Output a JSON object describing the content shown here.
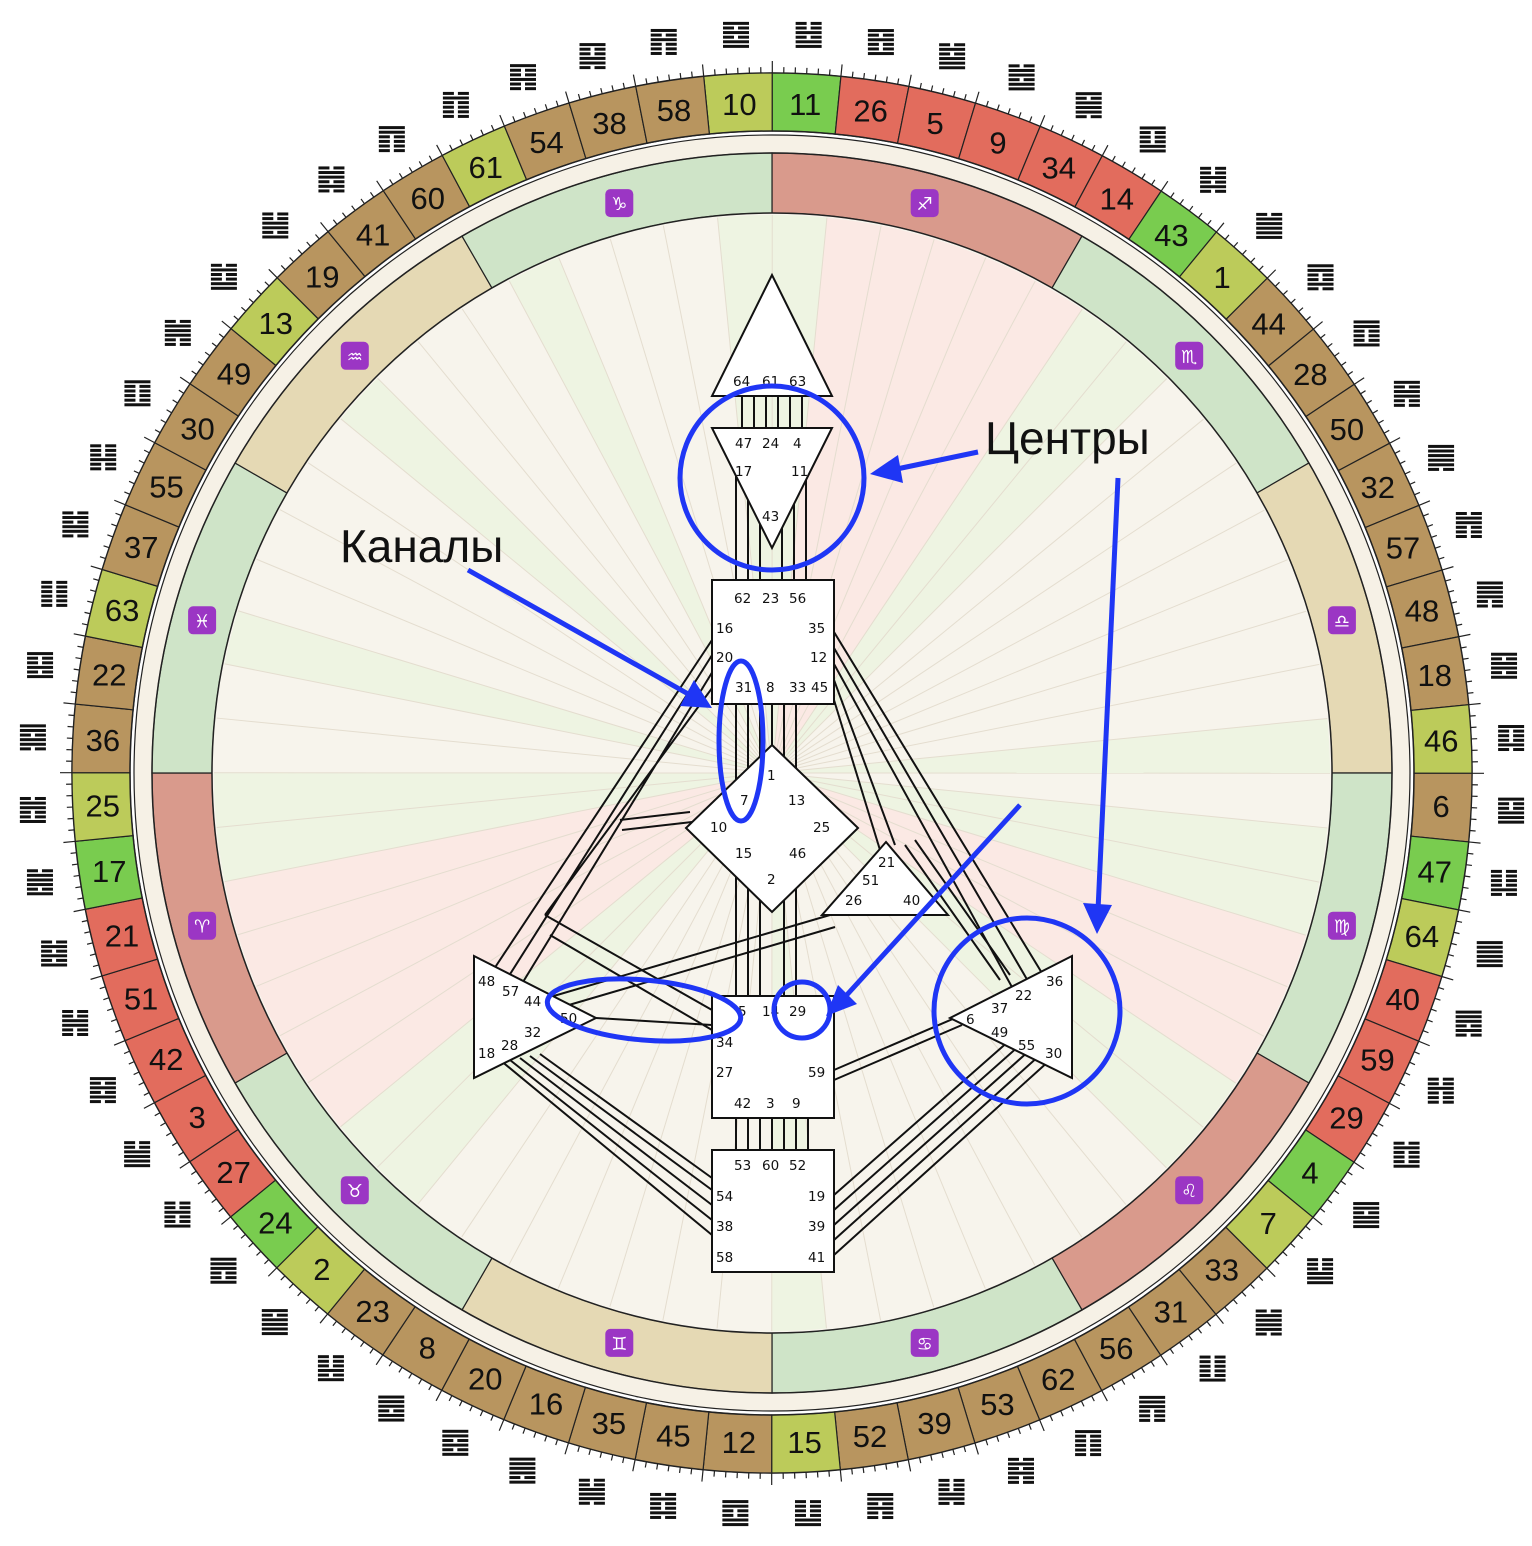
{
  "chart": {
    "colors": {
      "brown": "#b8955f",
      "green": "#79cc4f",
      "lime": "#bccb5a",
      "red": "#e26c5d",
      "ring_green": "#cfe4c8",
      "ring_red": "#d99a8c",
      "ring_tan": "#e5d9b4",
      "channel": "#111111",
      "annotation_blue": "#1f36f5"
    },
    "gates": [
      {
        "n": "10",
        "c": "lime"
      },
      {
        "n": "11",
        "c": "green"
      },
      {
        "n": "26",
        "c": "red"
      },
      {
        "n": "5",
        "c": "red"
      },
      {
        "n": "9",
        "c": "red"
      },
      {
        "n": "34",
        "c": "red"
      },
      {
        "n": "14",
        "c": "red"
      },
      {
        "n": "43",
        "c": "green"
      },
      {
        "n": "1",
        "c": "lime"
      },
      {
        "n": "44",
        "c": "brown"
      },
      {
        "n": "28",
        "c": "brown"
      },
      {
        "n": "50",
        "c": "brown"
      },
      {
        "n": "32",
        "c": "brown"
      },
      {
        "n": "57",
        "c": "brown"
      },
      {
        "n": "48",
        "c": "brown"
      },
      {
        "n": "18",
        "c": "brown"
      },
      {
        "n": "46",
        "c": "lime"
      },
      {
        "n": "6",
        "c": "brown"
      },
      {
        "n": "47",
        "c": "green"
      },
      {
        "n": "64",
        "c": "lime"
      },
      {
        "n": "40",
        "c": "red"
      },
      {
        "n": "59",
        "c": "red"
      },
      {
        "n": "29",
        "c": "red"
      },
      {
        "n": "4",
        "c": "green"
      },
      {
        "n": "7",
        "c": "lime"
      },
      {
        "n": "33",
        "c": "brown"
      },
      {
        "n": "31",
        "c": "brown"
      },
      {
        "n": "56",
        "c": "brown"
      },
      {
        "n": "62",
        "c": "brown"
      },
      {
        "n": "53",
        "c": "brown"
      },
      {
        "n": "39",
        "c": "brown"
      },
      {
        "n": "52",
        "c": "brown"
      },
      {
        "n": "15",
        "c": "lime"
      },
      {
        "n": "12",
        "c": "brown"
      },
      {
        "n": "45",
        "c": "brown"
      },
      {
        "n": "35",
        "c": "brown"
      },
      {
        "n": "16",
        "c": "brown"
      },
      {
        "n": "20",
        "c": "brown"
      },
      {
        "n": "8",
        "c": "brown"
      },
      {
        "n": "23",
        "c": "brown"
      },
      {
        "n": "2",
        "c": "lime"
      },
      {
        "n": "24",
        "c": "green"
      },
      {
        "n": "27",
        "c": "red"
      },
      {
        "n": "3",
        "c": "red"
      },
      {
        "n": "42",
        "c": "red"
      },
      {
        "n": "51",
        "c": "red"
      },
      {
        "n": "21",
        "c": "red"
      },
      {
        "n": "17",
        "c": "green"
      },
      {
        "n": "25",
        "c": "lime"
      },
      {
        "n": "36",
        "c": "brown"
      },
      {
        "n": "22",
        "c": "brown"
      },
      {
        "n": "63",
        "c": "lime"
      },
      {
        "n": "37",
        "c": "brown"
      },
      {
        "n": "55",
        "c": "brown"
      },
      {
        "n": "30",
        "c": "brown"
      },
      {
        "n": "49",
        "c": "brown"
      },
      {
        "n": "13",
        "c": "lime"
      },
      {
        "n": "19",
        "c": "brown"
      },
      {
        "n": "41",
        "c": "brown"
      },
      {
        "n": "60",
        "c": "brown"
      },
      {
        "n": "61",
        "c": "lime"
      },
      {
        "n": "54",
        "c": "brown"
      },
      {
        "n": "38",
        "c": "brown"
      },
      {
        "n": "58",
        "c": "brown"
      }
    ],
    "zodiac": [
      {
        "sym": "♐",
        "c": "ring_red"
      },
      {
        "sym": "♏",
        "c": "ring_green"
      },
      {
        "sym": "♎",
        "c": "ring_tan"
      },
      {
        "sym": "♍",
        "c": "ring_green"
      },
      {
        "sym": "♌",
        "c": "ring_red"
      },
      {
        "sym": "♋",
        "c": "ring_green"
      },
      {
        "sym": "♊",
        "c": "ring_tan"
      },
      {
        "sym": "♉",
        "c": "ring_green"
      },
      {
        "sym": "♈",
        "c": "ring_red"
      },
      {
        "sym": "♓",
        "c": "ring_green"
      },
      {
        "sym": "♒",
        "c": "ring_tan"
      },
      {
        "sym": "♑",
        "c": "ring_green"
      }
    ],
    "centers": {
      "head": [
        "64",
        "61",
        "63"
      ],
      "ajna": [
        "47",
        "24",
        "4",
        "17",
        "11",
        "43"
      ],
      "throat": [
        "62",
        "23",
        "56",
        "16",
        "35",
        "20",
        "12",
        "31",
        "8",
        "33",
        "45"
      ],
      "g": [
        "1",
        "7",
        "13",
        "10",
        "25",
        "15",
        "46",
        "2"
      ],
      "ego": [
        "21",
        "51",
        "26",
        "40"
      ],
      "spleen": [
        "48",
        "57",
        "44",
        "50",
        "32",
        "18",
        "28"
      ],
      "sacral": [
        "5",
        "14",
        "29",
        "34",
        "27",
        "59",
        "42",
        "3",
        "9"
      ],
      "root": [
        "53",
        "60",
        "52",
        "54",
        "19",
        "38",
        "39",
        "58",
        "41"
      ],
      "solar": [
        "36",
        "37",
        "22",
        "6",
        "49",
        "55",
        "30"
      ]
    },
    "annotations": {
      "centers_label": "Центры",
      "channels_label": "Каналы"
    }
  }
}
